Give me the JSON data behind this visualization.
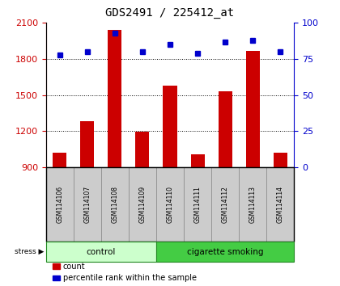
{
  "title": "GDS2491 / 225412_at",
  "samples": [
    "GSM114106",
    "GSM114107",
    "GSM114108",
    "GSM114109",
    "GSM114110",
    "GSM114111",
    "GSM114112",
    "GSM114113",
    "GSM114114"
  ],
  "counts": [
    1020,
    1280,
    2040,
    1195,
    1580,
    1010,
    1530,
    1870,
    1020
  ],
  "percentiles": [
    78,
    80,
    93,
    80,
    85,
    79,
    87,
    88,
    80
  ],
  "groups": [
    {
      "label": "control",
      "start": 0,
      "end": 4,
      "color_face": "#ccffcc",
      "color_edge": "#44aa44"
    },
    {
      "label": "cigarette smoking",
      "start": 4,
      "end": 9,
      "color_face": "#44cc44",
      "color_edge": "#228822"
    }
  ],
  "ylim_left": [
    900,
    2100
  ],
  "ylim_right": [
    0,
    100
  ],
  "yticks_left": [
    900,
    1200,
    1500,
    1800,
    2100
  ],
  "yticks_right": [
    0,
    25,
    50,
    75,
    100
  ],
  "bar_color": "#cc0000",
  "dot_color": "#0000cc",
  "bar_width": 0.5,
  "title_fontsize": 10,
  "axis_label_color_left": "#cc0000",
  "axis_label_color_right": "#0000cc",
  "grid_color": "#000000",
  "legend_items": [
    {
      "color": "#cc0000",
      "label": "count"
    },
    {
      "color": "#0000cc",
      "label": "percentile rank within the sample"
    }
  ],
  "group_colors": [
    "#ccffcc",
    "#44cc44"
  ],
  "group_edge_color": "#228822",
  "sample_box_color": "#cccccc",
  "sample_box_edge": "#888888"
}
